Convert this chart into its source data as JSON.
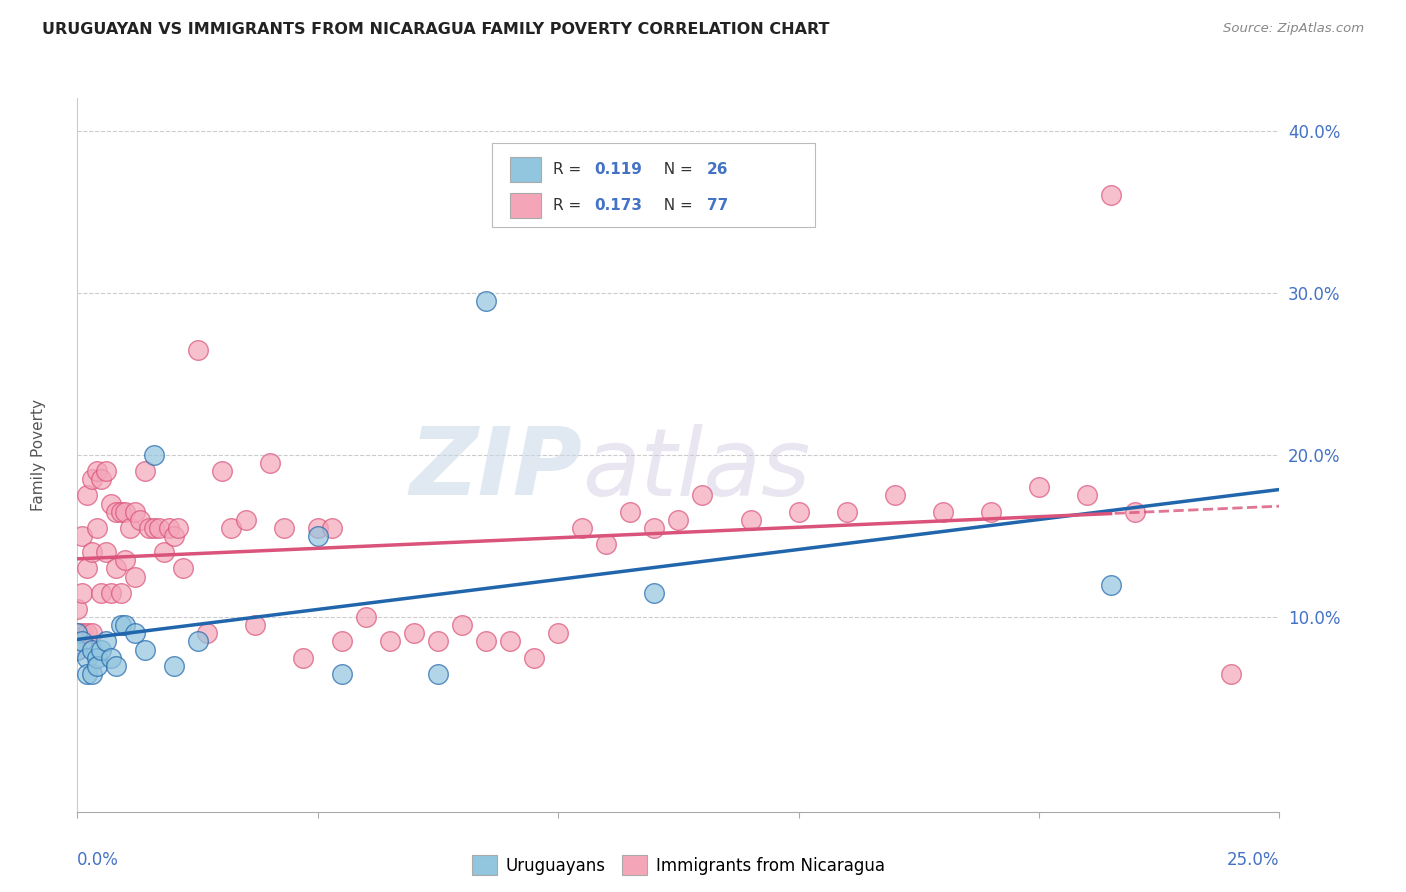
{
  "title": "URUGUAYAN VS IMMIGRANTS FROM NICARAGUA FAMILY POVERTY CORRELATION CHART",
  "source": "Source: ZipAtlas.com",
  "ylabel": "Family Poverty",
  "xlim": [
    0.0,
    0.25
  ],
  "ylim": [
    -0.02,
    0.42
  ],
  "yticks": [
    0.1,
    0.2,
    0.3,
    0.4
  ],
  "xticks": [
    0.0,
    0.05,
    0.1,
    0.15,
    0.2,
    0.25
  ],
  "blue_color": "#92c5de",
  "pink_color": "#f4a6b8",
  "blue_line_color": "#2166ac",
  "pink_line_color": "#d9537a",
  "watermark_zip": "ZIP",
  "watermark_atlas": "atlas",
  "uruguayan_x": [
    0.0,
    0.0,
    0.001,
    0.002,
    0.002,
    0.003,
    0.003,
    0.004,
    0.004,
    0.005,
    0.006,
    0.007,
    0.008,
    0.009,
    0.01,
    0.012,
    0.014,
    0.016,
    0.02,
    0.025,
    0.05,
    0.055,
    0.075,
    0.085,
    0.12,
    0.215
  ],
  "uruguayan_y": [
    0.09,
    0.08,
    0.085,
    0.075,
    0.065,
    0.08,
    0.065,
    0.075,
    0.07,
    0.08,
    0.085,
    0.075,
    0.07,
    0.095,
    0.095,
    0.09,
    0.08,
    0.2,
    0.07,
    0.085,
    0.15,
    0.065,
    0.065,
    0.295,
    0.115,
    0.12
  ],
  "nicaragua_x": [
    0.0,
    0.0,
    0.0,
    0.001,
    0.001,
    0.001,
    0.002,
    0.002,
    0.002,
    0.003,
    0.003,
    0.003,
    0.004,
    0.004,
    0.005,
    0.005,
    0.006,
    0.006,
    0.007,
    0.007,
    0.008,
    0.008,
    0.009,
    0.009,
    0.01,
    0.01,
    0.011,
    0.012,
    0.012,
    0.013,
    0.014,
    0.015,
    0.016,
    0.017,
    0.018,
    0.019,
    0.02,
    0.021,
    0.022,
    0.025,
    0.027,
    0.03,
    0.032,
    0.035,
    0.037,
    0.04,
    0.043,
    0.047,
    0.05,
    0.053,
    0.055,
    0.06,
    0.065,
    0.07,
    0.075,
    0.08,
    0.085,
    0.09,
    0.095,
    0.1,
    0.105,
    0.11,
    0.115,
    0.12,
    0.125,
    0.13,
    0.14,
    0.15,
    0.16,
    0.17,
    0.18,
    0.19,
    0.2,
    0.21,
    0.215,
    0.22,
    0.24
  ],
  "nicaragua_y": [
    0.105,
    0.09,
    0.08,
    0.15,
    0.115,
    0.09,
    0.175,
    0.13,
    0.09,
    0.185,
    0.14,
    0.09,
    0.19,
    0.155,
    0.185,
    0.115,
    0.19,
    0.14,
    0.17,
    0.115,
    0.165,
    0.13,
    0.165,
    0.115,
    0.165,
    0.135,
    0.155,
    0.165,
    0.125,
    0.16,
    0.19,
    0.155,
    0.155,
    0.155,
    0.14,
    0.155,
    0.15,
    0.155,
    0.13,
    0.265,
    0.09,
    0.19,
    0.155,
    0.16,
    0.095,
    0.195,
    0.155,
    0.075,
    0.155,
    0.155,
    0.085,
    0.1,
    0.085,
    0.09,
    0.085,
    0.095,
    0.085,
    0.085,
    0.075,
    0.09,
    0.155,
    0.145,
    0.165,
    0.155,
    0.16,
    0.175,
    0.16,
    0.165,
    0.165,
    0.175,
    0.165,
    0.165,
    0.18,
    0.175,
    0.36,
    0.165,
    0.065
  ]
}
